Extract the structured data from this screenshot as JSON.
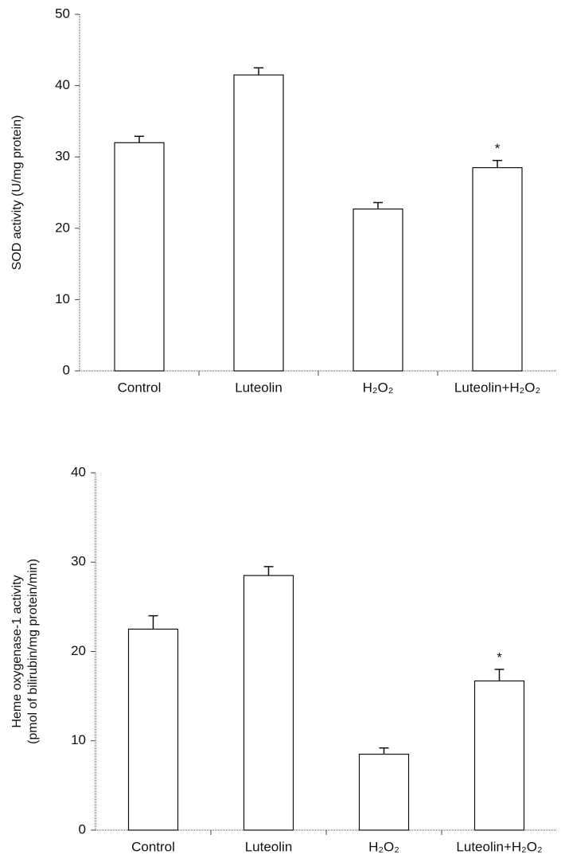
{
  "chart_data": [
    {
      "type": "bar",
      "ylabel": [
        "SOD activity (U/mg protein)"
      ],
      "categories": [
        "Control",
        "Luteolin",
        "H₂O₂",
        "Luteolin+H₂O₂"
      ],
      "values": [
        32,
        41.5,
        22.7,
        28.5
      ],
      "errors": [
        0.9,
        1.0,
        0.9,
        1.0
      ],
      "significance": [
        null,
        null,
        null,
        "*"
      ],
      "ylim": [
        0,
        50
      ],
      "yticks": [
        0,
        10,
        20,
        30,
        40,
        50
      ],
      "color": "#ffffff"
    },
    {
      "type": "bar",
      "ylabel": [
        "Heme oxygenase-1 activity",
        "(pmol of bilirubin/mg protein/min)"
      ],
      "categories": [
        "Control",
        "Luteolin",
        "H₂O₂",
        "Luteolin+H₂O₂"
      ],
      "values": [
        22.5,
        28.5,
        8.5,
        16.7
      ],
      "errors": [
        1.5,
        1.0,
        0.7,
        1.3
      ],
      "significance": [
        null,
        null,
        null,
        "*"
      ],
      "ylim": [
        0,
        40
      ],
      "yticks": [
        0,
        10,
        20,
        30,
        40
      ],
      "color": "#ffffff"
    }
  ]
}
